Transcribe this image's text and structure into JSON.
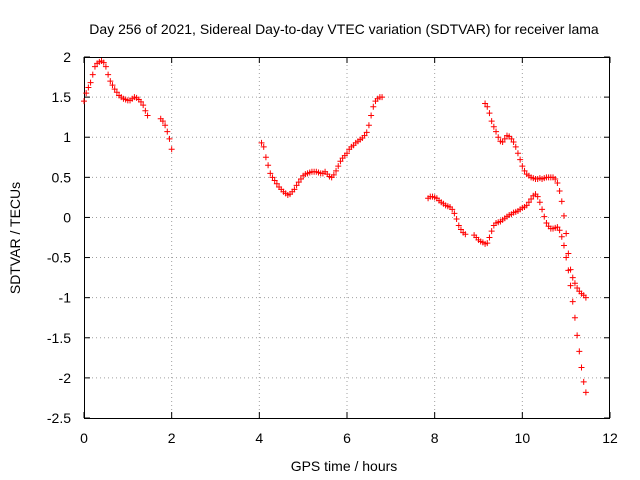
{
  "chart_data": {
    "type": "scatter",
    "title": "Day 256 of 2021, Sidereal Day-to-day VTEC variation (SDTVAR) for receiver lama",
    "xlabel": "GPS time / hours",
    "ylabel": "SDTVAR / TECUs",
    "xlim": [
      0,
      12
    ],
    "ylim": [
      -2.5,
      2
    ],
    "xticks": [
      0,
      2,
      4,
      6,
      8,
      10,
      12
    ],
    "yticks": [
      -2.5,
      -2,
      -1.5,
      -1,
      -0.5,
      0,
      0.5,
      1,
      1.5,
      2
    ],
    "grid": true,
    "marker": "plus",
    "colors": {
      "series": "#ff0000",
      "axes": "#000000",
      "grid": "#a0a0a0"
    },
    "series": [
      {
        "name": "segment-1",
        "points": [
          [
            0,
            1.45
          ],
          [
            0.05,
            1.55
          ],
          [
            0.1,
            1.62
          ],
          [
            0.15,
            1.68
          ],
          [
            0.2,
            1.78
          ],
          [
            0.25,
            1.88
          ],
          [
            0.3,
            1.92
          ],
          [
            0.35,
            1.94
          ],
          [
            0.4,
            1.95
          ],
          [
            0.45,
            1.93
          ],
          [
            0.5,
            1.88
          ],
          [
            0.55,
            1.78
          ],
          [
            0.6,
            1.7
          ],
          [
            0.65,
            1.65
          ],
          [
            0.7,
            1.6
          ],
          [
            0.75,
            1.56
          ],
          [
            0.8,
            1.52
          ],
          [
            0.85,
            1.5
          ],
          [
            0.9,
            1.48
          ],
          [
            0.95,
            1.47
          ],
          [
            1.0,
            1.46
          ],
          [
            1.05,
            1.46
          ],
          [
            1.1,
            1.48
          ],
          [
            1.15,
            1.5
          ],
          [
            1.2,
            1.49
          ],
          [
            1.25,
            1.47
          ],
          [
            1.3,
            1.44
          ],
          [
            1.35,
            1.4
          ],
          [
            1.4,
            1.33
          ],
          [
            1.45,
            1.27
          ]
        ]
      },
      {
        "name": "segment-2",
        "points": [
          [
            1.75,
            1.23
          ],
          [
            1.8,
            1.2
          ],
          [
            1.85,
            1.15
          ],
          [
            1.9,
            1.07
          ],
          [
            1.95,
            0.98
          ],
          [
            2.0,
            0.85
          ]
        ]
      },
      {
        "name": "segment-3",
        "points": [
          [
            4.05,
            0.93
          ],
          [
            4.1,
            0.88
          ],
          [
            4.15,
            0.75
          ],
          [
            4.2,
            0.65
          ],
          [
            4.25,
            0.55
          ],
          [
            4.3,
            0.5
          ],
          [
            4.35,
            0.46
          ],
          [
            4.4,
            0.42
          ],
          [
            4.45,
            0.38
          ],
          [
            4.5,
            0.35
          ],
          [
            4.55,
            0.32
          ],
          [
            4.6,
            0.3
          ],
          [
            4.65,
            0.28
          ],
          [
            4.7,
            0.29
          ],
          [
            4.75,
            0.32
          ],
          [
            4.8,
            0.35
          ],
          [
            4.85,
            0.4
          ],
          [
            4.9,
            0.44
          ],
          [
            4.95,
            0.48
          ],
          [
            5.0,
            0.52
          ],
          [
            5.05,
            0.54
          ],
          [
            5.1,
            0.55
          ],
          [
            5.15,
            0.56
          ],
          [
            5.2,
            0.57
          ],
          [
            5.25,
            0.57
          ],
          [
            5.3,
            0.57
          ],
          [
            5.35,
            0.56
          ],
          [
            5.4,
            0.55
          ],
          [
            5.45,
            0.55
          ],
          [
            5.5,
            0.57
          ],
          [
            5.55,
            0.54
          ],
          [
            5.6,
            0.51
          ],
          [
            5.65,
            0.5
          ],
          [
            5.7,
            0.53
          ],
          [
            5.75,
            0.58
          ],
          [
            5.8,
            0.64
          ],
          [
            5.85,
            0.7
          ],
          [
            5.9,
            0.74
          ],
          [
            5.95,
            0.77
          ],
          [
            6.0,
            0.8
          ],
          [
            6.05,
            0.85
          ],
          [
            6.1,
            0.88
          ],
          [
            6.15,
            0.9
          ],
          [
            6.2,
            0.93
          ],
          [
            6.25,
            0.95
          ],
          [
            6.3,
            0.97
          ],
          [
            6.35,
            0.99
          ],
          [
            6.4,
            1.02
          ],
          [
            6.45,
            1.06
          ],
          [
            6.5,
            1.15
          ],
          [
            6.55,
            1.27
          ],
          [
            6.6,
            1.38
          ],
          [
            6.65,
            1.45
          ],
          [
            6.7,
            1.48
          ],
          [
            6.75,
            1.5
          ],
          [
            6.8,
            1.5
          ]
        ]
      },
      {
        "name": "segment-4",
        "points": [
          [
            7.85,
            0.24
          ],
          [
            7.9,
            0.26
          ],
          [
            7.95,
            0.26
          ],
          [
            8.0,
            0.25
          ],
          [
            8.05,
            0.24
          ],
          [
            8.1,
            0.21
          ],
          [
            8.15,
            0.19
          ],
          [
            8.2,
            0.17
          ],
          [
            8.25,
            0.15
          ],
          [
            8.3,
            0.14
          ],
          [
            8.35,
            0.13
          ],
          [
            8.4,
            0.1
          ],
          [
            8.45,
            0.05
          ],
          [
            8.5,
            -0.02
          ],
          [
            8.55,
            -0.1
          ],
          [
            8.6,
            -0.15
          ],
          [
            8.65,
            -0.19
          ],
          [
            8.7,
            -0.21
          ]
        ]
      },
      {
        "name": "segment-5",
        "points": [
          [
            8.9,
            -0.22
          ],
          [
            8.95,
            -0.25
          ],
          [
            9.0,
            -0.28
          ],
          [
            9.05,
            -0.3
          ],
          [
            9.1,
            -0.31
          ],
          [
            9.15,
            -0.33
          ],
          [
            9.2,
            -0.32
          ],
          [
            9.25,
            -0.25
          ],
          [
            9.3,
            -0.17
          ],
          [
            9.35,
            -0.1
          ],
          [
            9.4,
            -0.07
          ],
          [
            9.45,
            -0.06
          ],
          [
            9.5,
            -0.05
          ],
          [
            9.55,
            -0.03
          ],
          [
            9.6,
            -0.01
          ],
          [
            9.65,
            0.01
          ],
          [
            9.7,
            0.03
          ],
          [
            9.75,
            0.04
          ],
          [
            9.8,
            0.06
          ],
          [
            9.85,
            0.07
          ],
          [
            9.9,
            0.08
          ],
          [
            9.95,
            0.1
          ],
          [
            10.0,
            0.12
          ],
          [
            10.05,
            0.13
          ],
          [
            10.1,
            0.15
          ],
          [
            10.15,
            0.19
          ],
          [
            10.2,
            0.23
          ],
          [
            10.25,
            0.27
          ],
          [
            10.3,
            0.29
          ],
          [
            10.35,
            0.26
          ],
          [
            10.4,
            0.19
          ],
          [
            10.45,
            0.1
          ],
          [
            10.5,
            0.01
          ],
          [
            10.55,
            -0.07
          ],
          [
            10.6,
            -0.11
          ],
          [
            10.65,
            -0.14
          ],
          [
            10.7,
            -0.14
          ],
          [
            10.75,
            -0.13
          ],
          [
            10.8,
            -0.12
          ],
          [
            10.85,
            -0.16
          ],
          [
            10.9,
            -0.24
          ],
          [
            10.95,
            -0.35
          ],
          [
            11.0,
            -0.5
          ],
          [
            11.05,
            -0.66
          ],
          [
            11.1,
            -0.85
          ],
          [
            11.15,
            -1.05
          ],
          [
            11.2,
            -1.25
          ],
          [
            11.25,
            -1.47
          ],
          [
            11.3,
            -1.67
          ],
          [
            11.35,
            -1.87
          ],
          [
            11.4,
            -2.05
          ],
          [
            11.45,
            -2.18
          ]
        ]
      },
      {
        "name": "segment-6",
        "points": [
          [
            9.15,
            1.42
          ],
          [
            9.2,
            1.38
          ],
          [
            9.25,
            1.3
          ],
          [
            9.3,
            1.2
          ],
          [
            9.35,
            1.13
          ],
          [
            9.4,
            1.07
          ],
          [
            9.45,
            1.0
          ],
          [
            9.5,
            0.95
          ],
          [
            9.55,
            0.94
          ],
          [
            9.6,
            0.98
          ],
          [
            9.65,
            1.02
          ],
          [
            9.7,
            1.01
          ],
          [
            9.75,
            0.98
          ],
          [
            9.8,
            0.94
          ],
          [
            9.85,
            0.88
          ],
          [
            9.9,
            0.8
          ],
          [
            9.95,
            0.72
          ],
          [
            10.0,
            0.64
          ],
          [
            10.05,
            0.58
          ],
          [
            10.1,
            0.54
          ],
          [
            10.15,
            0.52
          ],
          [
            10.2,
            0.5
          ],
          [
            10.25,
            0.49
          ],
          [
            10.3,
            0.48
          ],
          [
            10.35,
            0.48
          ],
          [
            10.4,
            0.49
          ],
          [
            10.45,
            0.48
          ],
          [
            10.5,
            0.49
          ],
          [
            10.55,
            0.5
          ],
          [
            10.6,
            0.5
          ],
          [
            10.65,
            0.5
          ],
          [
            10.7,
            0.5
          ],
          [
            10.75,
            0.48
          ],
          [
            10.8,
            0.43
          ],
          [
            10.85,
            0.33
          ],
          [
            10.9,
            0.2
          ],
          [
            10.95,
            0.02
          ],
          [
            11.0,
            -0.2
          ],
          [
            11.05,
            -0.45
          ],
          [
            11.1,
            -0.65
          ],
          [
            11.15,
            -0.75
          ],
          [
            11.2,
            -0.82
          ],
          [
            11.25,
            -0.88
          ],
          [
            11.3,
            -0.92
          ],
          [
            11.35,
            -0.95
          ],
          [
            11.4,
            -0.97
          ],
          [
            11.45,
            -1.0
          ]
        ]
      }
    ]
  }
}
